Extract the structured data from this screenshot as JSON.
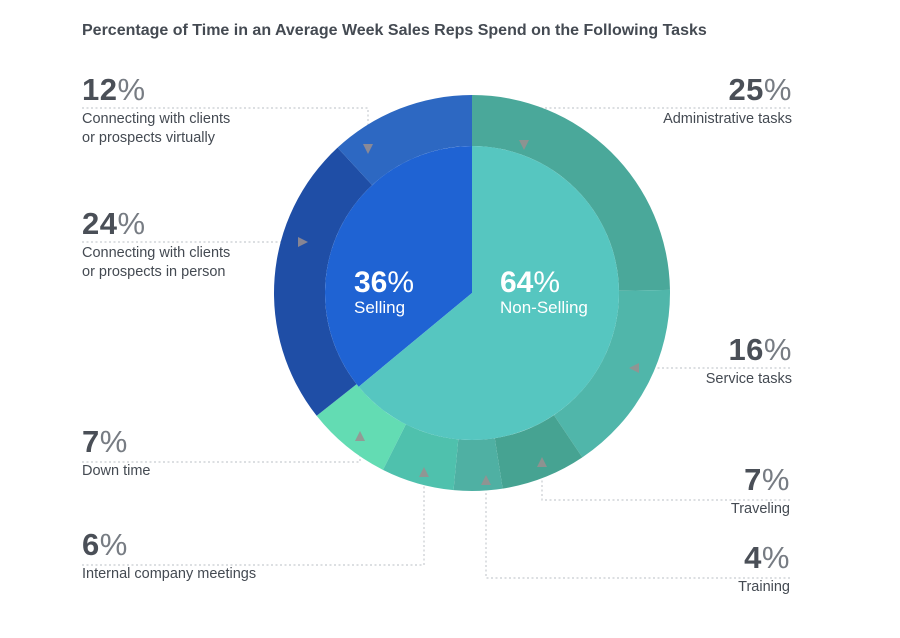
{
  "title": "Percentage of Time in an Average Week Sales Reps Spend on the Following Tasks",
  "percent_symbol": "%",
  "colors": {
    "selling_inner": "#1f63d3",
    "nonselling_inner": "#56c6c0",
    "leader_line": "#c8ccd0",
    "arrow": "#9a8f8f"
  },
  "chart_data": {
    "type": "pie",
    "title": "Percentage of Time in an Average Week Sales Reps Spend on the Following Tasks",
    "inner": [
      {
        "label": "Selling",
        "value": 36,
        "color": "#1f63d3"
      },
      {
        "label": "Non-Selling",
        "value": 64,
        "color": "#56c6c0"
      }
    ],
    "outer": [
      {
        "label": "Administrative tasks",
        "value": 25,
        "color": "#4aa89a"
      },
      {
        "label": "Service tasks",
        "value": 16,
        "color": "#50b6aa"
      },
      {
        "label": "Traveling",
        "value": 7,
        "color": "#46a392"
      },
      {
        "label": "Training",
        "value": 4,
        "color": "#4fb0a3"
      },
      {
        "label": "Internal company meetings",
        "value": 6,
        "color": "#4fc1ad"
      },
      {
        "label": "Down time",
        "value": 7,
        "color": "#63dcb3"
      },
      {
        "label": "Connecting with clients\nor prospects in person",
        "value": 24,
        "color": "#1f4ea6"
      },
      {
        "label": "Connecting with clients\nor prospects virtually",
        "value": 12,
        "color": "#2d68c2"
      }
    ]
  },
  "labels": {
    "connecting_virtual": {
      "value": "12",
      "text": "Connecting with clients\nor prospects virtually"
    },
    "connecting_person": {
      "value": "24",
      "text": "Connecting with clients\nor prospects in person"
    },
    "down_time": {
      "value": "7",
      "text": "Down time"
    },
    "internal_meetings": {
      "value": "6",
      "text": "Internal company meetings"
    },
    "administrative": {
      "value": "25",
      "text": "Administrative tasks"
    },
    "service": {
      "value": "16",
      "text": "Service tasks"
    },
    "traveling": {
      "value": "7",
      "text": "Traveling"
    },
    "training": {
      "value": "4",
      "text": "Training"
    }
  },
  "center": {
    "selling": {
      "value": "36",
      "text": "Selling"
    },
    "nonselling": {
      "value": "64",
      "text": "Non-Selling"
    }
  }
}
